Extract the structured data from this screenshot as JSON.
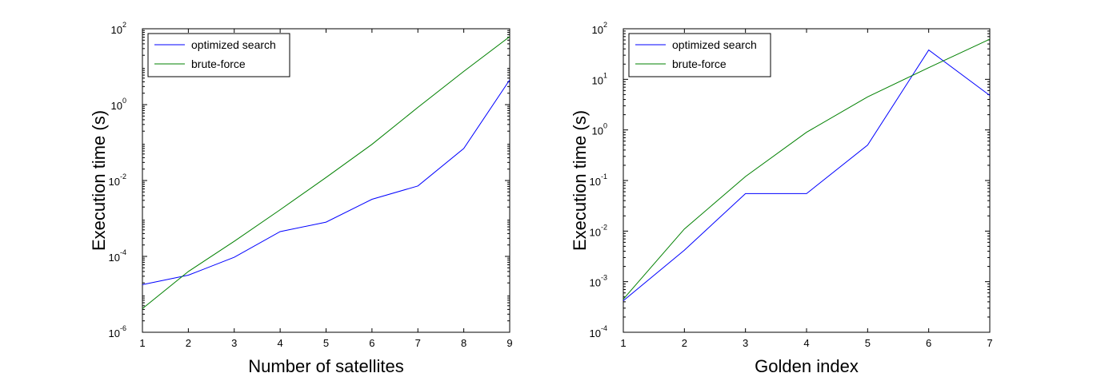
{
  "chart_data": [
    {
      "type": "line",
      "xlabel": "Number of satellites",
      "ylabel": "Execution time (s)",
      "yscale": "log",
      "xlim": [
        1,
        9
      ],
      "ylim": [
        1e-06,
        100
      ],
      "xticks": [
        1,
        2,
        3,
        4,
        5,
        6,
        7,
        8,
        9
      ],
      "yticks": [
        -6,
        -4,
        -2,
        0,
        2
      ],
      "legend": "top-left",
      "series": [
        {
          "name": "optimized search",
          "color": "#0000ff",
          "x": [
            1,
            2,
            3,
            4,
            5,
            6,
            7,
            8,
            9
          ],
          "values": [
            1.8e-05,
            3.2e-05,
            9.5e-05,
            0.00045,
            0.0008,
            0.0032,
            0.0072,
            0.07,
            4.5
          ]
        },
        {
          "name": "brute-force",
          "color": "#008000",
          "x": [
            1,
            2,
            3,
            4,
            5,
            6,
            7,
            8,
            9
          ],
          "values": [
            4.2e-06,
            4e-05,
            0.00025,
            0.0017,
            0.012,
            0.09,
            0.85,
            7.5,
            62
          ]
        }
      ]
    },
    {
      "type": "line",
      "xlabel": "Golden index",
      "ylabel": "Execution time (s)",
      "yscale": "log",
      "xlim": [
        1,
        7
      ],
      "ylim": [
        0.0001,
        100
      ],
      "xticks": [
        1,
        2,
        3,
        4,
        5,
        6,
        7
      ],
      "yticks": [
        -4,
        -3,
        -2,
        -1,
        0,
        1,
        2
      ],
      "legend": "top-left",
      "series": [
        {
          "name": "optimized search",
          "color": "#0000ff",
          "x": [
            1,
            2,
            3,
            4,
            5,
            6,
            7
          ],
          "values": [
            0.00042,
            0.0042,
            0.055,
            0.055,
            0.5,
            38,
            4.8
          ]
        },
        {
          "name": "brute-force",
          "color": "#008000",
          "x": [
            1,
            2,
            3,
            4,
            5,
            6,
            7
          ],
          "values": [
            0.00045,
            0.011,
            0.12,
            0.9,
            4.5,
            17,
            62
          ]
        }
      ]
    }
  ]
}
